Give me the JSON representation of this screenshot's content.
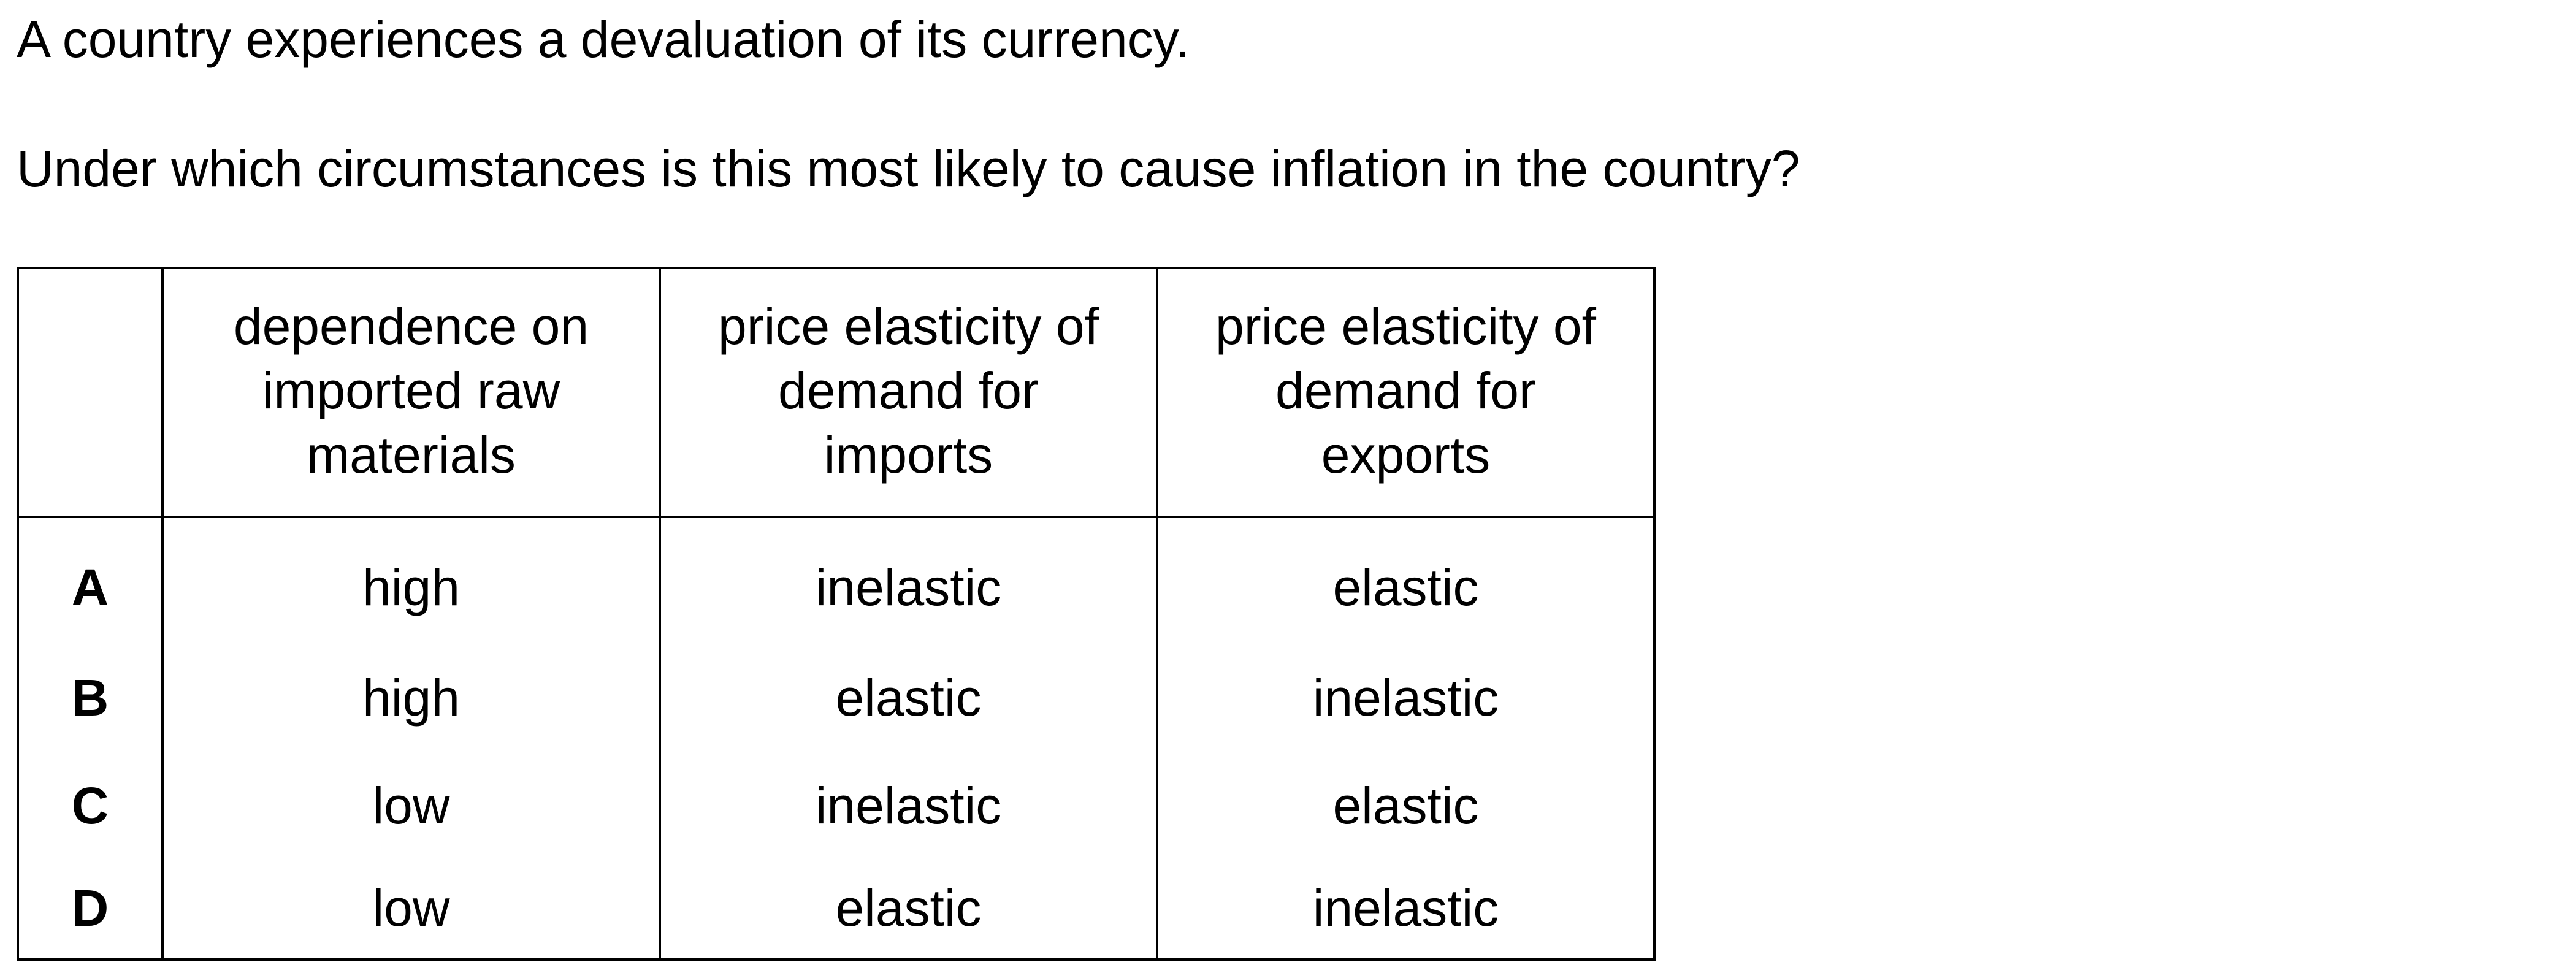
{
  "intro": "A country experiences a devaluation of its currency.",
  "question": "Under which circumstances is this most likely to cause inflation in the country?",
  "table": {
    "headers": [
      "",
      [
        "dependence on",
        "imported raw",
        "materials"
      ],
      [
        "price elasticity of",
        "demand for",
        "imports"
      ],
      [
        "price elasticity of",
        "demand for",
        "exports"
      ]
    ],
    "rows": [
      {
        "option": "A",
        "dependence": "high",
        "imports": "inelastic",
        "exports": "elastic"
      },
      {
        "option": "B",
        "dependence": "high",
        "imports": "elastic",
        "exports": "inelastic"
      },
      {
        "option": "C",
        "dependence": "low",
        "imports": "inelastic",
        "exports": "elastic"
      },
      {
        "option": "D",
        "dependence": "low",
        "imports": "elastic",
        "exports": "inelastic"
      }
    ]
  }
}
